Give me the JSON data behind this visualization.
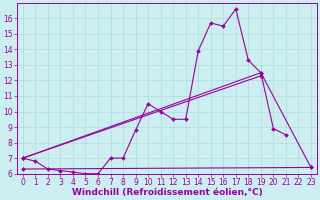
{
  "background_color": "#cceef0",
  "line_color": "#990099",
  "grid_color": "#aadddd",
  "xlabel": "Windchill (Refroidissement éolien,°C)",
  "xlabel_fontsize": 6.5,
  "xlabel_fontweight": "bold",
  "tick_fontsize": 5.5,
  "xlim": [
    -0.5,
    23.5
  ],
  "ylim": [
    6.0,
    17.0
  ],
  "yticks": [
    6,
    7,
    8,
    9,
    10,
    11,
    12,
    13,
    14,
    15,
    16
  ],
  "xticks": [
    0,
    1,
    2,
    3,
    4,
    5,
    6,
    7,
    8,
    9,
    10,
    11,
    12,
    13,
    14,
    15,
    16,
    17,
    18,
    19,
    20,
    21,
    22,
    23
  ],
  "series": [
    {
      "x": [
        0,
        1,
        2,
        3,
        4,
        5,
        6,
        7,
        8,
        9,
        10,
        11,
        12,
        13,
        14,
        15,
        16,
        17,
        18,
        19,
        20,
        21
      ],
      "y": [
        7.0,
        6.8,
        6.3,
        6.2,
        6.1,
        6.0,
        6.0,
        7.0,
        7.0,
        8.8,
        10.5,
        10.0,
        9.5,
        9.5,
        13.9,
        15.7,
        15.5,
        16.6,
        13.3,
        12.5,
        8.9,
        8.5
      ]
    },
    {
      "x": [
        0,
        19,
        23
      ],
      "y": [
        7.0,
        12.5,
        6.4
      ]
    },
    {
      "x": [
        0,
        19
      ],
      "y": [
        7.0,
        12.3
      ]
    },
    {
      "x": [
        0,
        23
      ],
      "y": [
        6.3,
        6.4
      ]
    }
  ]
}
